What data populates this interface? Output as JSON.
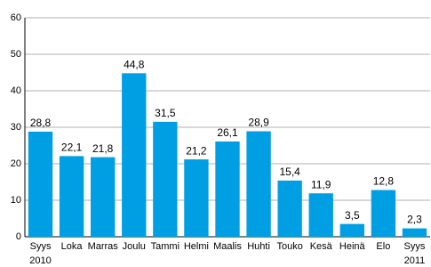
{
  "chart_data": {
    "type": "bar",
    "categories": [
      "Syys",
      "Loka",
      "Marras",
      "Joulu",
      "Tammi",
      "Helmi",
      "Maalis",
      "Huhti",
      "Touko",
      "Kesä",
      "Heinä",
      "Elo",
      "Syys"
    ],
    "years": [
      "2010",
      null,
      null,
      null,
      null,
      null,
      null,
      null,
      null,
      null,
      null,
      null,
      "2011"
    ],
    "values": [
      28.8,
      22.1,
      21.8,
      44.8,
      31.5,
      21.2,
      26.1,
      28.9,
      15.4,
      11.9,
      3.5,
      12.8,
      2.3
    ],
    "value_labels": [
      "28,8",
      "22,1",
      "21,8",
      "44,8",
      "31,5",
      "21,2",
      "26,1",
      "28,9",
      "15,4",
      "11,9",
      "3,5",
      "12,8",
      "2,3"
    ],
    "color": "#009fe3",
    "ylim": [
      0,
      60
    ],
    "yticks": [
      0,
      10,
      20,
      30,
      40,
      50,
      60
    ],
    "grid": true
  }
}
